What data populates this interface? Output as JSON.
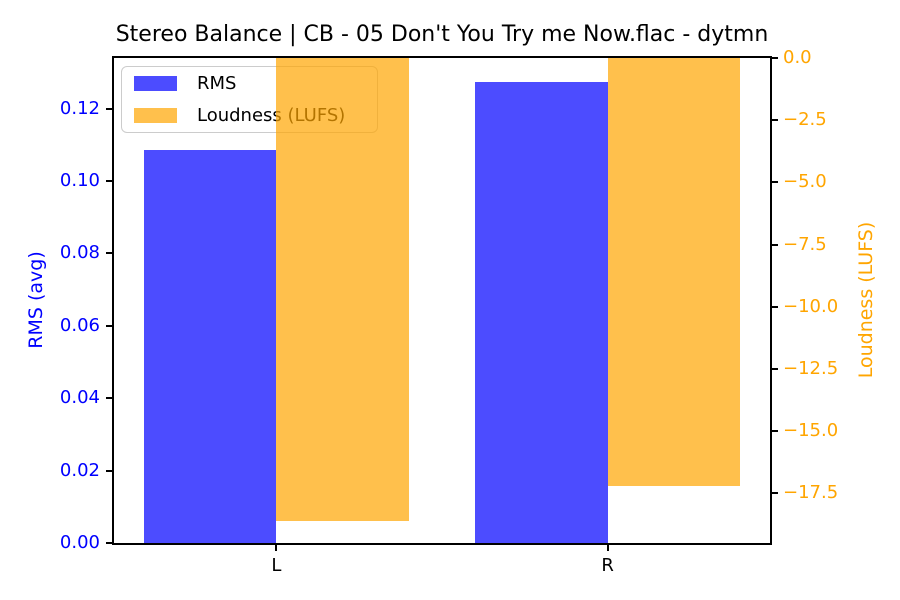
{
  "chart_data": {
    "type": "bar",
    "title": "Stereo Balance | CB - 05 Don't You Try me Now.flac - dytmn",
    "categories": [
      "L",
      "R"
    ],
    "series": [
      {
        "name": "RMS",
        "axis": "left",
        "color": "rgba(0,0,255,0.7)",
        "values": [
          0.1085,
          0.1275
        ]
      },
      {
        "name": "Loudness (LUFS)",
        "axis": "right",
        "color": "rgba(255,165,0,0.7)",
        "values": [
          -18.6,
          -17.2
        ]
      }
    ],
    "axes": {
      "left": {
        "label": "RMS (avg)",
        "color": "#0000ff",
        "lim": [
          0,
          0.134
        ],
        "ticks": [
          0,
          0.02,
          0.04,
          0.06,
          0.08,
          0.1,
          0.12
        ],
        "tick_labels": [
          "0.00",
          "0.02",
          "0.04",
          "0.06",
          "0.08",
          "0.10",
          "0.12"
        ]
      },
      "right": {
        "label": "Loudness (LUFS)",
        "color": "#ffa500",
        "lim": [
          -19.5,
          0
        ],
        "ticks": [
          0,
          -2.5,
          -5,
          -7.5,
          -10,
          -12.5,
          -15,
          -17.5
        ],
        "tick_labels": [
          "0.0",
          "−2.5",
          "−5.0",
          "−7.5",
          "−10.0",
          "−12.5",
          "−15.0",
          "−17.5"
        ]
      },
      "x": {
        "tick_labels": [
          "L",
          "R"
        ]
      }
    },
    "legend": {
      "position": "upper left",
      "entries": [
        "RMS",
        "Loudness (LUFS)"
      ]
    },
    "layout": {
      "grid": false,
      "bar_width": 0.4,
      "xlim": [
        -0.49,
        1.49
      ]
    }
  }
}
